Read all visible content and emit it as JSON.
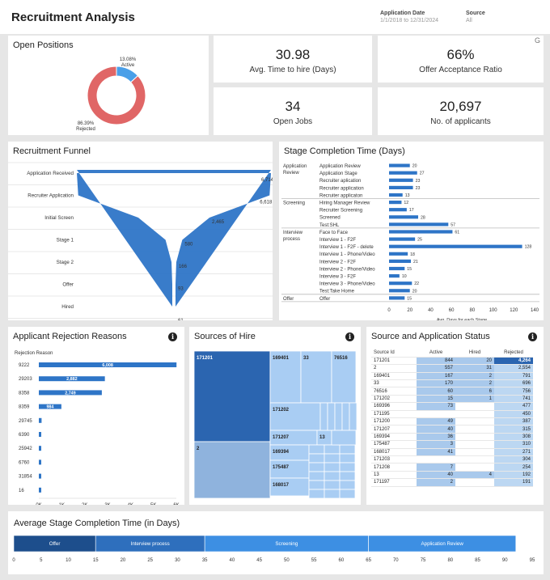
{
  "header": {
    "title": "Recruitment Analysis",
    "filter_date_label": "Application Date",
    "filter_date_value": "1/1/2018 to 12/31/2024",
    "filter_source_label": "Source",
    "filter_source_value": "All"
  },
  "open_positions": {
    "title": "Open Positions",
    "active_pct": "13.08%",
    "active_label": "Active",
    "rejected_pct": "86.39%",
    "rejected_label": "Rejected",
    "corner_glyph": "G"
  },
  "kpis": {
    "time_to_hire_value": "30.98",
    "time_to_hire_label": "Avg. Time to hire (Days)",
    "offer_acceptance_value": "66%",
    "offer_acceptance_label": "Offer Acceptance Ratio",
    "open_jobs_value": "34",
    "open_jobs_label": "Open Jobs",
    "applicants_value": "20,697",
    "applicants_label": "No. of applicants"
  },
  "funnel": {
    "title": "Recruitment Funnel"
  },
  "stage_completion": {
    "title": "Stage Completion Time (Days)"
  },
  "rejection": {
    "title": "Applicant Rejection Reasons",
    "header": "Rejection Reason"
  },
  "sources": {
    "title": "Sources of Hire"
  },
  "status": {
    "title": "Source and Application Status",
    "columns": [
      "Source Id",
      "Active",
      "Hired",
      "Rejected"
    ],
    "rows": [
      [
        "171201",
        "844",
        "20",
        "4,264"
      ],
      [
        "2",
        "557",
        "31",
        "2,554"
      ],
      [
        "169401",
        "167",
        "2",
        "791"
      ],
      [
        "33",
        "170",
        "2",
        "696"
      ],
      [
        "76516",
        "60",
        "6",
        "756"
      ],
      [
        "171202",
        "15",
        "1",
        "741"
      ],
      [
        "169396",
        "73",
        "",
        "477"
      ],
      [
        "171195",
        "",
        "",
        "450"
      ],
      [
        "171200",
        "49",
        "",
        "387"
      ],
      [
        "171207",
        "40",
        "",
        "315"
      ],
      [
        "169394",
        "36",
        "",
        "308"
      ],
      [
        "175487",
        "3",
        "",
        "310"
      ],
      [
        "168017",
        "41",
        "",
        "271"
      ],
      [
        "171203",
        "",
        "",
        "304"
      ],
      [
        "171208",
        "7",
        "",
        "254"
      ],
      [
        "13",
        "40",
        "4",
        "192"
      ],
      [
        "171197",
        "2",
        "",
        "191"
      ]
    ]
  },
  "avg_stage": {
    "title": "Average Stage Completion Time (in Days)"
  },
  "colors": {
    "primary": "#2e75c7",
    "rejected": "#e06666",
    "active": "#4a9fe8",
    "light_blue": "#a9cdf3",
    "selected": "#2b65b0"
  },
  "chart_data": [
    {
      "type": "pie",
      "title": "Open Positions",
      "categories": [
        "Active",
        "Rejected"
      ],
      "values": [
        13.08,
        86.39
      ]
    },
    {
      "type": "area",
      "title": "Recruitment Funnel",
      "categories": [
        "Application Received",
        "Recruiter Application",
        "Initial Screen",
        "Stage 1",
        "Stage 2",
        "Offer",
        "Hired"
      ],
      "values": [
        6714,
        6618,
        2465,
        580,
        166,
        93,
        61
      ],
      "labels": [
        "6,714",
        "6,618",
        "2,465",
        "580",
        "166",
        "93",
        "61"
      ]
    },
    {
      "type": "bar",
      "title": "Stage Completion Time (Days)",
      "xlabel": "Avg. Days for each Stage",
      "xlim": [
        0,
        140
      ],
      "ticks": [
        "0",
        "20",
        "40",
        "60",
        "80",
        "100",
        "120",
        "140"
      ],
      "groups": [
        {
          "name": "Application Review",
          "label_lines": [
            "Application",
            "Review"
          ],
          "items": [
            {
              "label": "Application Review",
              "value": 20
            },
            {
              "label": "Application Stage",
              "value": 27
            },
            {
              "label": "Recruiter aplication",
              "value": 23
            },
            {
              "label": "Recruiter application",
              "value": 23
            },
            {
              "label": "Recruiter applicaton",
              "value": 13
            }
          ]
        },
        {
          "name": "Screening",
          "label_lines": [
            "Screening"
          ],
          "items": [
            {
              "label": "Hiring Manager Review",
              "value": 12
            },
            {
              "label": "Recruiter Screening",
              "value": 17
            },
            {
              "label": "Screened",
              "value": 28
            },
            {
              "label": "Test:SHL",
              "value": 57
            }
          ]
        },
        {
          "name": "Interview process",
          "label_lines": [
            "Interview",
            "process"
          ],
          "items": [
            {
              "label": "Face to Face",
              "value": 61
            },
            {
              "label": "Interview 1 - F2F",
              "value": 25
            },
            {
              "label": "Interview 1 - F2F - delete",
              "value": 128
            },
            {
              "label": "Interview 1 - Phone/Video",
              "value": 18
            },
            {
              "label": "Interview 2 - F2F",
              "value": 21
            },
            {
              "label": "Interview 2 - Phone/Video",
              "value": 15
            },
            {
              "label": "Interview 3 - F2F",
              "value": 10
            },
            {
              "label": "Interview 3 - Phone/Video",
              "value": 22
            },
            {
              "label": "Test:Take Home",
              "value": 20
            }
          ]
        },
        {
          "name": "Offer",
          "label_lines": [
            "Offer"
          ],
          "items": [
            {
              "label": "Offer",
              "value": 15
            }
          ]
        }
      ]
    },
    {
      "type": "bar",
      "title": "Applicant Rejection Reasons",
      "categories": [
        "9222",
        "29203",
        "8358",
        "8359",
        "29745",
        "6390",
        "25942",
        "6760",
        "31854",
        "16"
      ],
      "values": [
        6008,
        2882,
        2749,
        984,
        120,
        95,
        90,
        60,
        45,
        30
      ],
      "labels": [
        "6,008",
        "2,882",
        "2,749",
        "984",
        "",
        "",
        "",
        "",
        "",
        ""
      ],
      "xlim": [
        0,
        6000
      ],
      "ticks": [
        "0K",
        "1K",
        "2K",
        "3K",
        "4K",
        "5K",
        "6K"
      ]
    },
    {
      "type": "heatmap",
      "title": "Sources of Hire",
      "categories": [
        "171201",
        "2",
        "169401",
        "33",
        "76516",
        "171202",
        "171207",
        "13",
        "169394",
        "175487",
        "168017"
      ]
    },
    {
      "type": "bar",
      "title": "Average Stage Completion Time (in Days)",
      "categories": [
        "Offer",
        "Interview process",
        "Screening",
        "Application Review"
      ],
      "values": [
        15,
        20,
        30,
        27
      ],
      "xlim": [
        0,
        95
      ],
      "ticks": [
        "0",
        "5",
        "10",
        "15",
        "20",
        "25",
        "30",
        "35",
        "40",
        "45",
        "50",
        "55",
        "60",
        "65",
        "70",
        "75",
        "80",
        "85",
        "90",
        "95"
      ]
    }
  ]
}
